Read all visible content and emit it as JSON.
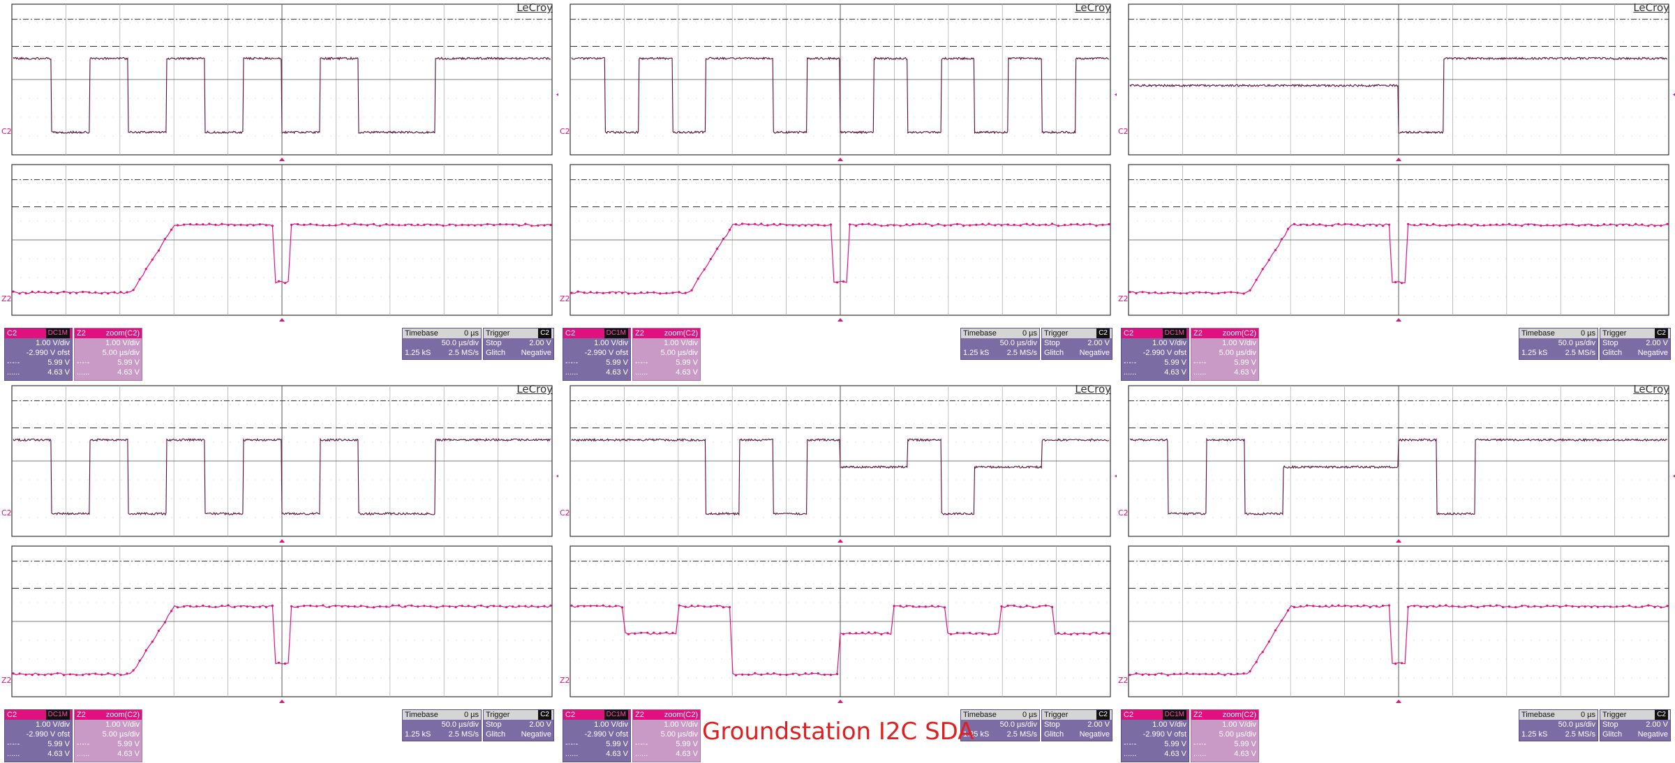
{
  "caption": "Groundstation I2C SDA",
  "brand": "LeCroy",
  "channel_label_top": "C2",
  "channel_label_bottom": "Z2",
  "colors": {
    "trace": "#e0117f",
    "trace_dark": "#5a0a3a",
    "panel_main": "#7c6ca4",
    "panel_zoom": "#c99ac6",
    "accent": "#e0117f"
  },
  "c2_panel": {
    "title": "C2",
    "coupling": "DC1M",
    "scale": "1.00 V/div",
    "offset": "-2.990 V ofst",
    "dashdot_sym": "-·-·-",
    "dashdot_val": "5.99 V",
    "dotted_sym": "......",
    "dotted_val": "4.63 V"
  },
  "z2_panel": {
    "title": "Z2",
    "source": "zoom(C2)",
    "scale": "1.00 V/div",
    "time": "5.00 µs/div",
    "dashdot_sym": "-·-·-",
    "dashdot_val": "5.99 V",
    "dotted_sym": "......",
    "dotted_val": "4.63 V"
  },
  "timebase_panel": {
    "title": "Timebase",
    "delay": "0 µs",
    "div": "50.0 µs/div",
    "samples": "1.25 kS",
    "rate": "2.5 MS/s"
  },
  "trigger_panel": {
    "title": "Trigger",
    "source": "C2",
    "mode": "Stop",
    "level": "2.00 V",
    "type": "Glitch",
    "slope": "Negative"
  },
  "scopes": [
    {
      "id": 1,
      "main_levels": "HLHLHLHLHLLHHH",
      "zoom_kind": "rise_glitch"
    },
    {
      "id": 2,
      "main_levels": "HLHLHHLHLHLHLHLH",
      "zoom_kind": "rise_glitch"
    },
    {
      "id": 3,
      "main_levels": "MMMMMMLHHHHH",
      "zoom_kind": "rise_glitch"
    },
    {
      "id": 4,
      "main_levels": "HLHLHLHLHLLHHH",
      "zoom_kind": "rise_glitch"
    },
    {
      "id": 5,
      "main_levels": "HHHHLHLHMMHLMMHH",
      "zoom_kind": "steps"
    },
    {
      "id": 6,
      "main_levels": "HLHLMMMHLHHHHH",
      "zoom_kind": "rise_glitch"
    }
  ]
}
